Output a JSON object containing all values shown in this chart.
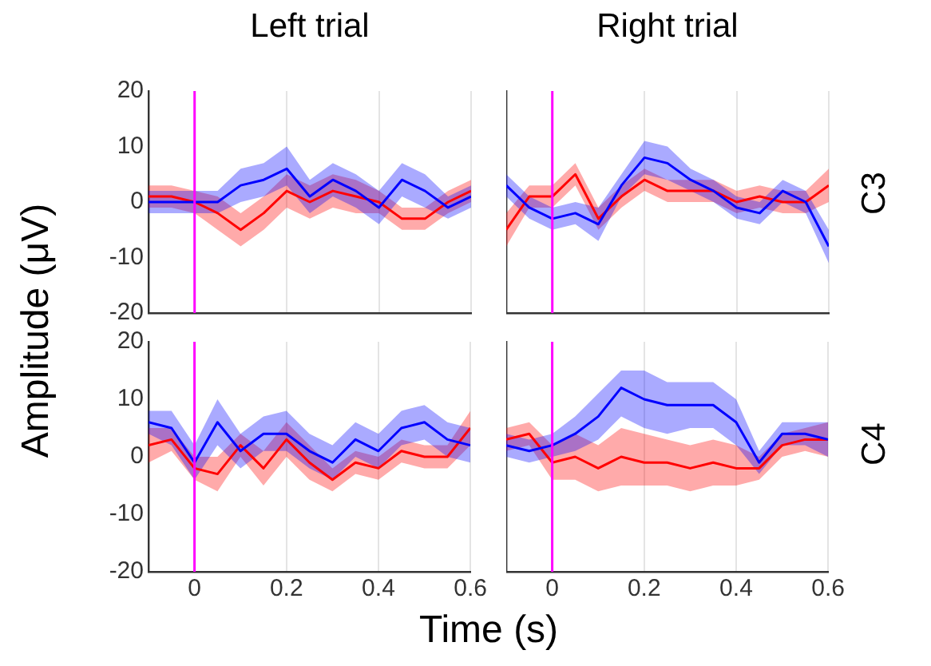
{
  "chart_data": [
    {
      "type": "line",
      "title": "Left trial",
      "ylabel": "Amplitude (μV)",
      "x": [
        -0.1,
        -0.05,
        0,
        0.05,
        0.1,
        0.15,
        0.2,
        0.25,
        0.3,
        0.35,
        0.4,
        0.45,
        0.5,
        0.55,
        0.6
      ],
      "xlim": [
        -0.1,
        0.6
      ],
      "xticks": [
        0,
        0.2,
        0.4,
        0.6
      ],
      "ylim": [
        -20,
        20
      ],
      "yticks": [
        -20,
        -10,
        0,
        10,
        20
      ],
      "grid": "x",
      "tick_labels": "y",
      "ref_lines": [
        {
          "axis": "x",
          "value": 0,
          "color": "#ff00ff"
        }
      ],
      "series": [
        {
          "color": "#0000ff",
          "values": [
            0,
            0,
            0,
            0,
            3,
            4,
            6,
            1,
            4,
            2,
            -1,
            4,
            2,
            -1,
            1
          ],
          "lower": [
            -2,
            -2,
            -2,
            -2,
            0,
            1,
            3,
            -2,
            1,
            -1,
            -4,
            1,
            -1,
            -3,
            -1
          ],
          "upper": [
            2,
            2,
            2,
            2,
            6,
            7,
            10,
            4,
            7,
            5,
            2,
            7,
            5,
            1,
            3
          ]
        },
        {
          "color": "#ff0000",
          "values": [
            1,
            1,
            0,
            -2,
            -5,
            -2,
            2,
            0,
            2,
            1,
            0,
            -3,
            -3,
            0,
            2
          ],
          "lower": [
            -1,
            -1,
            -2,
            -5,
            -8,
            -5,
            -1,
            -3,
            -1,
            -2,
            -2,
            -5,
            -5,
            -2,
            0
          ],
          "upper": [
            3,
            3,
            2,
            1,
            -2,
            1,
            5,
            3,
            5,
            4,
            2,
            -1,
            -1,
            2,
            4
          ]
        }
      ]
    },
    {
      "type": "line",
      "title": "Right trial",
      "y2label": "C3",
      "x": [
        -0.1,
        -0.05,
        0,
        0.05,
        0.1,
        0.15,
        0.2,
        0.25,
        0.3,
        0.35,
        0.4,
        0.45,
        0.5,
        0.55,
        0.6
      ],
      "xlim": [
        -0.1,
        0.6
      ],
      "xticks": [
        0,
        0.2,
        0.4,
        0.6
      ],
      "ylim": [
        -20,
        20
      ],
      "yticks": [
        -20,
        -10,
        0,
        10,
        20
      ],
      "grid": "x",
      "tick_labels": false,
      "ref_lines": [
        {
          "axis": "x",
          "value": 0,
          "color": "#ff00ff"
        }
      ],
      "series": [
        {
          "color": "#0000ff",
          "values": [
            3,
            -1,
            -3,
            -2,
            -4,
            3,
            8,
            7,
            4,
            2,
            -1,
            -2,
            2,
            0,
            -8
          ],
          "lower": [
            1,
            -3,
            -5,
            -4,
            -7,
            1,
            5,
            4,
            2,
            0,
            -3,
            -4,
            0,
            -2,
            -11
          ],
          "upper": [
            5,
            1,
            -1,
            0,
            -1,
            5,
            11,
            10,
            6,
            4,
            1,
            0,
            4,
            2,
            -5
          ]
        },
        {
          "color": "#ff0000",
          "values": [
            -5,
            1,
            1,
            5,
            -3,
            1,
            4,
            2,
            2,
            2,
            0,
            1,
            0,
            0,
            3
          ],
          "lower": [
            -8,
            -1,
            -1,
            3,
            -5,
            -1,
            2,
            0,
            0,
            0,
            -2,
            -1,
            -2,
            -2,
            0
          ],
          "upper": [
            -2,
            3,
            3,
            7,
            -1,
            3,
            6,
            4,
            4,
            4,
            2,
            3,
            2,
            2,
            6
          ]
        }
      ]
    },
    {
      "type": "line",
      "xlabel": "Time (s)",
      "x": [
        -0.1,
        -0.05,
        0,
        0.05,
        0.1,
        0.15,
        0.2,
        0.25,
        0.3,
        0.35,
        0.4,
        0.45,
        0.5,
        0.55,
        0.6
      ],
      "xlim": [
        -0.1,
        0.6
      ],
      "xticks": [
        0,
        0.2,
        0.4,
        0.6
      ],
      "ylim": [
        -20,
        20
      ],
      "yticks": [
        -20,
        -10,
        0,
        10,
        20
      ],
      "grid": "x",
      "ref_lines": [
        {
          "axis": "x",
          "value": 0,
          "color": "#ff00ff"
        }
      ],
      "series": [
        {
          "color": "#0000ff",
          "values": [
            6,
            5,
            -1,
            6,
            1,
            4,
            4,
            1,
            -1,
            3,
            1,
            5,
            6,
            3,
            2
          ],
          "lower": [
            4,
            2,
            -4,
            2,
            -2,
            1,
            1,
            -2,
            -4,
            0,
            -2,
            2,
            3,
            0,
            -1
          ],
          "upper": [
            8,
            8,
            2,
            10,
            4,
            7,
            8,
            4,
            2,
            6,
            4,
            8,
            9,
            6,
            5
          ]
        },
        {
          "color": "#ff0000",
          "values": [
            2,
            3,
            -2,
            -3,
            2,
            -2,
            3,
            -1,
            -4,
            -1,
            -2,
            1,
            0,
            0,
            5
          ],
          "lower": [
            -1,
            1,
            -4,
            -6,
            0,
            -5,
            0,
            -4,
            -6,
            -3,
            -4,
            -1,
            -2,
            -2,
            2
          ],
          "upper": [
            5,
            5,
            0,
            0,
            4,
            1,
            6,
            2,
            -2,
            1,
            0,
            3,
            2,
            2,
            8
          ]
        }
      ]
    },
    {
      "type": "line",
      "y2label": "C4",
      "x": [
        -0.1,
        -0.05,
        0,
        0.05,
        0.1,
        0.15,
        0.2,
        0.25,
        0.3,
        0.35,
        0.4,
        0.45,
        0.5,
        0.55,
        0.6
      ],
      "xlim": [
        -0.1,
        0.6
      ],
      "xticks": [
        0,
        0.2,
        0.4,
        0.6
      ],
      "ylim": [
        -20,
        20
      ],
      "yticks": [
        -20,
        -10,
        0,
        10,
        20
      ],
      "grid": "x",
      "tick_labels": "x",
      "ref_lines": [
        {
          "axis": "x",
          "value": 0,
          "color": "#ff00ff"
        }
      ],
      "series": [
        {
          "color": "#0000ff",
          "values": [
            2,
            1,
            2,
            4,
            7,
            12,
            10,
            9,
            9,
            9,
            6,
            -1,
            4,
            4,
            3
          ],
          "lower": [
            0,
            -1,
            0,
            1,
            3,
            7,
            5,
            4,
            5,
            5,
            2,
            -3,
            2,
            2,
            0
          ],
          "upper": [
            4,
            3,
            4,
            7,
            11,
            15,
            15,
            13,
            13,
            13,
            10,
            1,
            6,
            6,
            6
          ]
        },
        {
          "color": "#ff0000",
          "values": [
            3,
            4,
            -1,
            0,
            -2,
            0,
            -1,
            -1,
            -2,
            -1,
            -2,
            -2,
            2,
            3,
            3
          ],
          "lower": [
            1,
            2,
            -4,
            -4,
            -6,
            -5,
            -5,
            -5,
            -6,
            -5,
            -5,
            -4,
            0,
            1,
            0
          ],
          "upper": [
            5,
            6,
            2,
            4,
            2,
            5,
            4,
            3,
            2,
            3,
            2,
            0,
            4,
            5,
            6
          ]
        }
      ]
    }
  ]
}
